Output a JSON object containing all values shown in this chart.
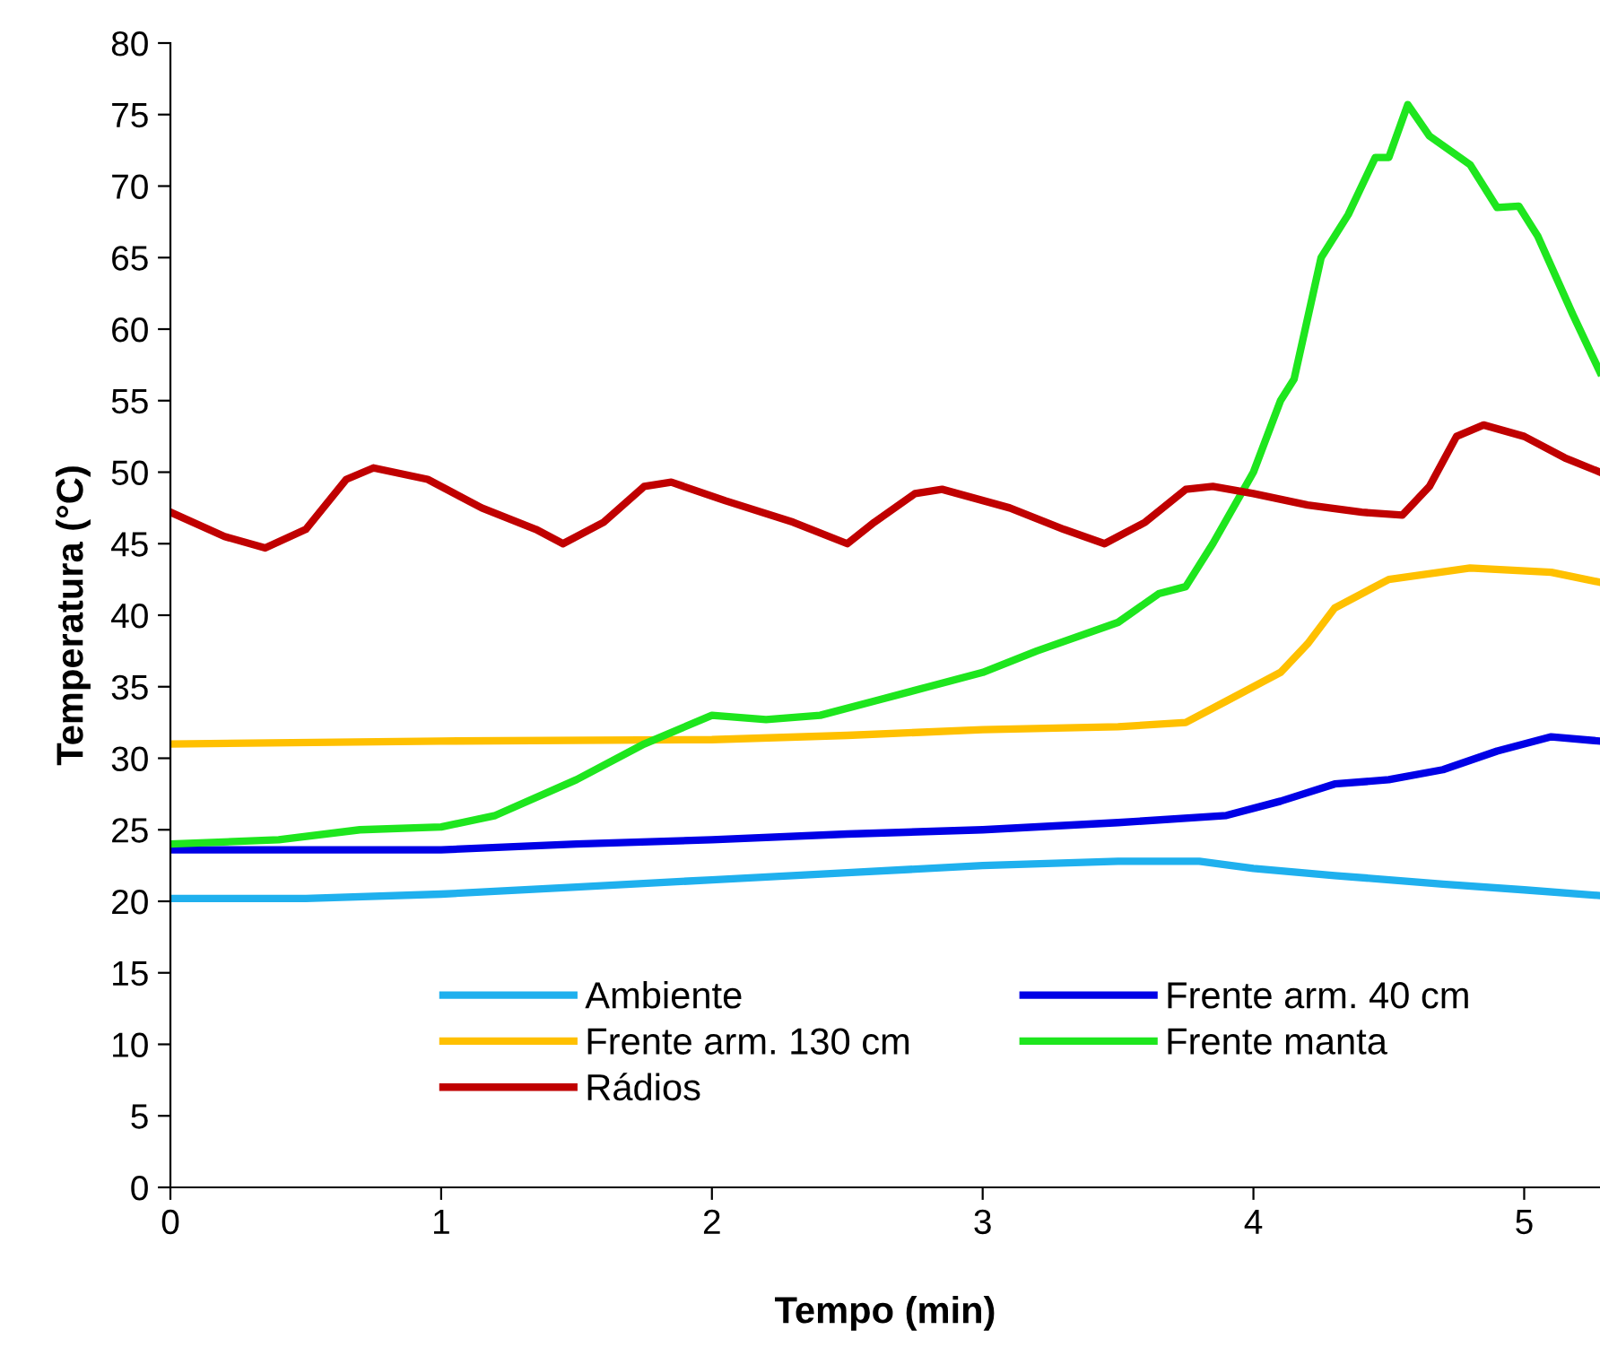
{
  "chart_data": {
    "type": "line",
    "xlabel": "Tempo (min)",
    "ylabel": "Temperatura (°C)",
    "xlim": [
      0,
      5.28
    ],
    "xticks": [
      0,
      1,
      2,
      3,
      4,
      5
    ],
    "ylim": [
      0,
      80
    ],
    "yticks": [
      0,
      5,
      10,
      15,
      20,
      25,
      30,
      35,
      40,
      45,
      50,
      55,
      60,
      65,
      70,
      75,
      80
    ],
    "grid": false,
    "legend": "bottom",
    "marker": "none",
    "line_style": "solid",
    "series": [
      {
        "name": "Ambiente",
        "color": "#1fb0ee",
        "x": [
          0,
          0.5,
          1,
          1.5,
          2,
          2.5,
          3,
          3.5,
          3.8,
          4,
          4.3,
          4.7,
          5,
          5.28
        ],
        "values": [
          20.2,
          20.2,
          20.5,
          21,
          21.5,
          22,
          22.5,
          22.8,
          22.8,
          22.3,
          21.8,
          21.2,
          20.8,
          20.4
        ]
      },
      {
        "name": "Frente arm. 40 cm",
        "color": "#0000e6",
        "x": [
          0,
          1,
          1.5,
          2,
          2.5,
          3,
          3.5,
          3.9,
          4.1,
          4.3,
          4.5,
          4.7,
          4.9,
          5.1,
          5.28
        ],
        "values": [
          23.6,
          23.6,
          24,
          24.3,
          24.7,
          25,
          25.5,
          26,
          27,
          28.2,
          28.5,
          29.2,
          30.5,
          31.5,
          31.2
        ]
      },
      {
        "name": "Frente arm. 130 cm",
        "color": "#ffc000",
        "x": [
          0,
          1,
          2,
          2.5,
          3,
          3.5,
          3.75,
          3.9,
          4.1,
          4.2,
          4.3,
          4.5,
          4.8,
          5.1,
          5.28
        ],
        "values": [
          31,
          31.2,
          31.3,
          31.6,
          32,
          32.2,
          32.5,
          34,
          36,
          38,
          40.5,
          42.5,
          43.3,
          43,
          42.3
        ]
      },
      {
        "name": "Frente manta",
        "color": "#1ee61e",
        "x": [
          0,
          0.4,
          0.7,
          1,
          1.2,
          1.5,
          1.75,
          2,
          2.2,
          2.4,
          2.6,
          2.8,
          3,
          3.2,
          3.5,
          3.65,
          3.75,
          3.85,
          4.0,
          4.1,
          4.15,
          4.25,
          4.35,
          4.45,
          4.5,
          4.57,
          4.65,
          4.8,
          4.9,
          4.98,
          5.05,
          5.18,
          5.28
        ],
        "values": [
          24,
          24.3,
          25,
          25.2,
          26,
          28.5,
          31,
          33,
          32.7,
          33,
          34,
          35,
          36,
          37.5,
          39.5,
          41.5,
          42,
          45,
          50,
          55,
          56.5,
          65,
          68,
          72,
          72,
          75.7,
          73.5,
          71.5,
          68.5,
          68.6,
          66.5,
          61,
          57
        ]
      },
      {
        "name": "Rádios",
        "color": "#c00000",
        "x": [
          0,
          0.2,
          0.35,
          0.5,
          0.65,
          0.75,
          0.95,
          1.15,
          1.35,
          1.45,
          1.6,
          1.75,
          1.85,
          2.05,
          2.3,
          2.5,
          2.6,
          2.75,
          2.85,
          3.1,
          3.3,
          3.45,
          3.6,
          3.75,
          3.85,
          4.0,
          4.2,
          4.4,
          4.55,
          4.65,
          4.75,
          4.85,
          5.0,
          5.15,
          5.28
        ],
        "values": [
          47.2,
          45.5,
          44.7,
          46,
          49.5,
          50.3,
          49.5,
          47.5,
          46,
          45,
          46.5,
          49,
          49.3,
          48,
          46.5,
          45,
          46.5,
          48.5,
          48.8,
          47.5,
          46,
          45,
          46.5,
          48.8,
          49,
          48.5,
          47.7,
          47.2,
          47,
          49,
          52.5,
          53.3,
          52.5,
          51,
          50
        ]
      }
    ]
  }
}
